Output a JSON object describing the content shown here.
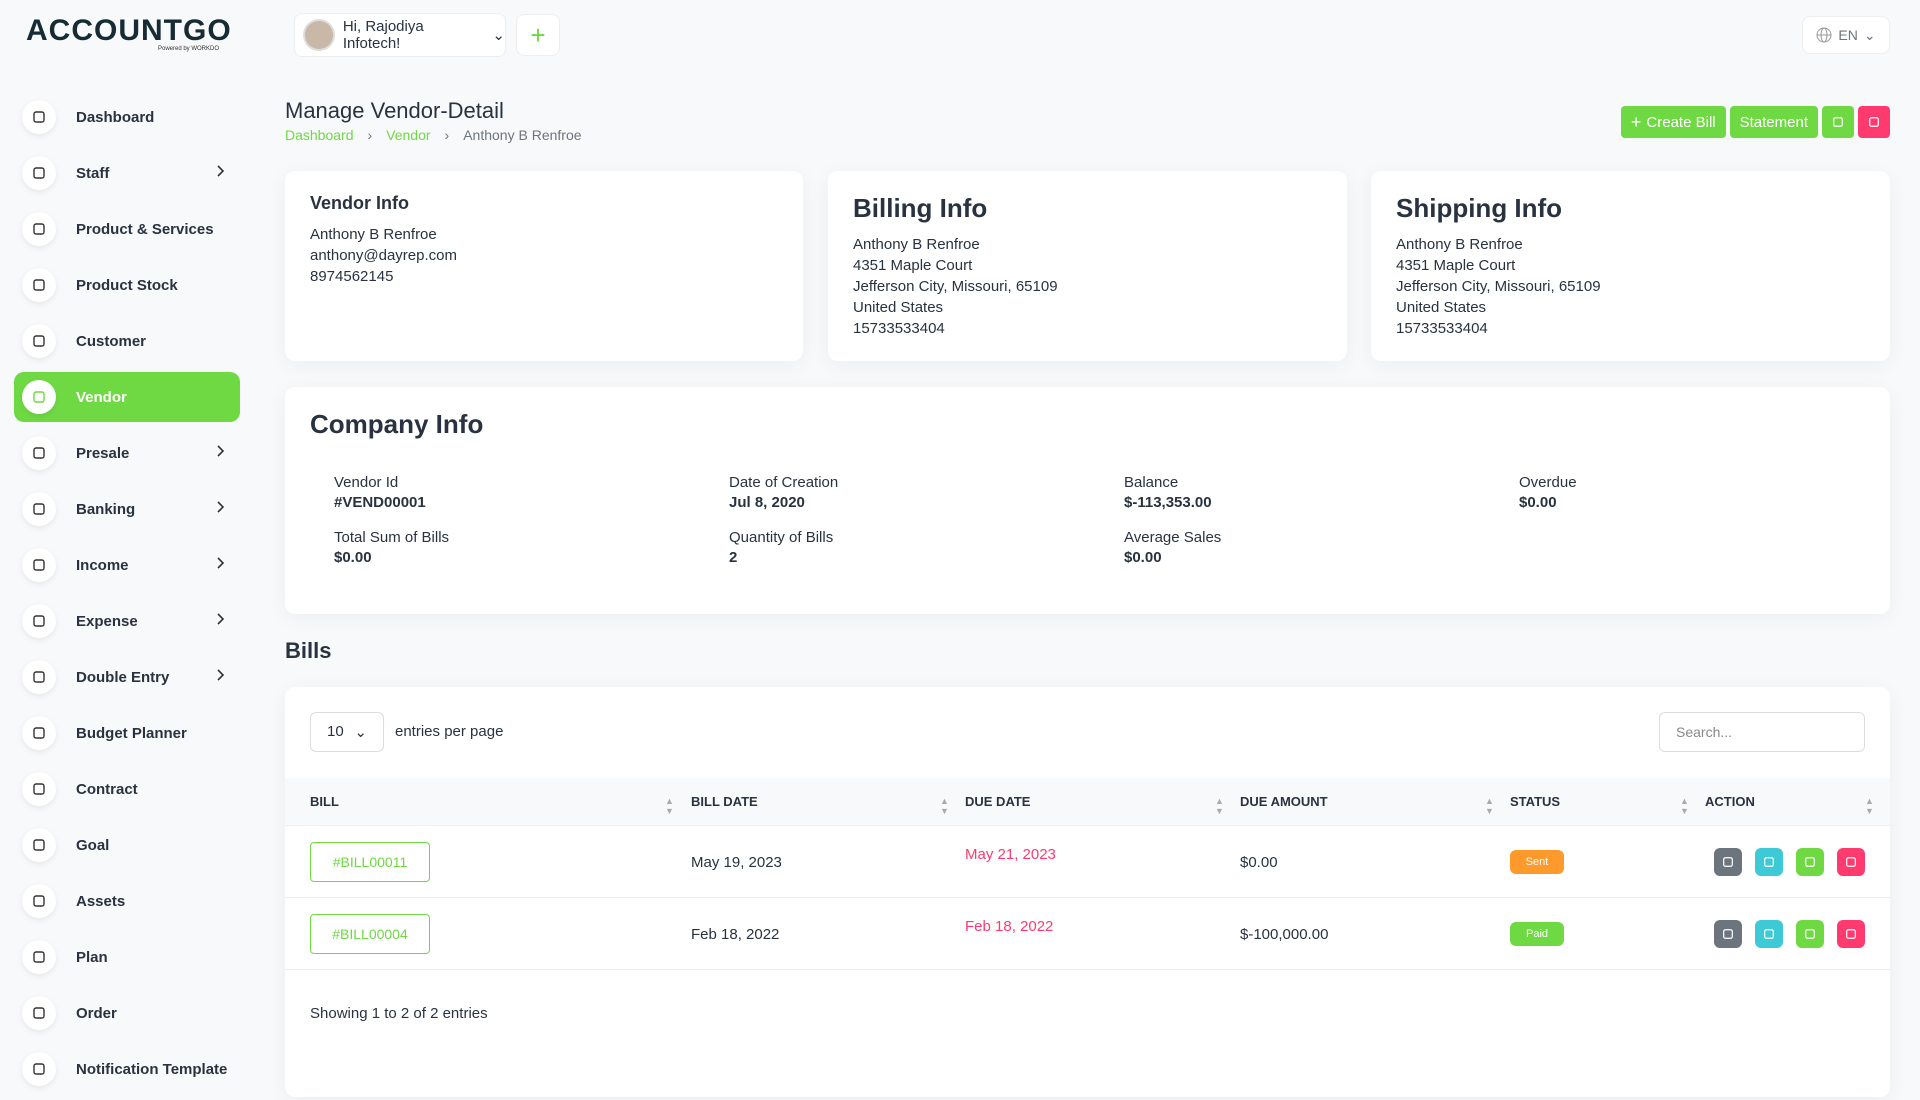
{
  "brand": {
    "logo": "ACCOUNTGO",
    "tagline": "Powered by WORKDO"
  },
  "header": {
    "greeting": "Hi, Rajodiya Infotech!",
    "language": "EN"
  },
  "sidebar": {
    "items": [
      {
        "label": "Dashboard"
      },
      {
        "label": "Staff",
        "submenu": true
      },
      {
        "label": "Product & Services"
      },
      {
        "label": "Product Stock"
      },
      {
        "label": "Customer"
      },
      {
        "label": "Vendor",
        "active": true
      },
      {
        "label": "Presale",
        "submenu": true
      },
      {
        "label": "Banking",
        "submenu": true
      },
      {
        "label": "Income",
        "submenu": true
      },
      {
        "label": "Expense",
        "submenu": true
      },
      {
        "label": "Double Entry",
        "submenu": true
      },
      {
        "label": "Budget Planner"
      },
      {
        "label": "Contract"
      },
      {
        "label": "Goal"
      },
      {
        "label": "Assets"
      },
      {
        "label": "Plan"
      },
      {
        "label": "Order"
      },
      {
        "label": "Notification Template"
      }
    ]
  },
  "page": {
    "title": "Manage Vendor-Detail",
    "breadcrumb": [
      "Dashboard",
      "Vendor",
      "Anthony B Renfroe"
    ],
    "actions": [
      "Create Bill",
      "Statement"
    ]
  },
  "vendor_info": {
    "title": "Vendor Info",
    "lines": [
      "Anthony B Renfroe",
      "anthony@dayrep.com",
      "8974562145"
    ]
  },
  "billing_info": {
    "title": "Billing Info",
    "lines": [
      "Anthony B Renfroe",
      "4351 Maple Court",
      "Jefferson City, Missouri, 65109",
      "United States",
      "15733533404"
    ]
  },
  "shipping_info": {
    "title": "Shipping Info",
    "lines": [
      "Anthony B Renfroe",
      "4351 Maple Court",
      "Jefferson City, Missouri, 65109",
      "United States",
      "15733533404"
    ]
  },
  "company_info": {
    "title": "Company Info",
    "fields": [
      {
        "label": "Vendor Id",
        "value": "#VEND00001"
      },
      {
        "label": "Date of Creation",
        "value": "Jul 8, 2020"
      },
      {
        "label": "Balance",
        "value": "$-113,353.00"
      },
      {
        "label": "Overdue",
        "value": "$0.00"
      },
      {
        "label": "Total Sum of Bills",
        "value": "$0.00"
      },
      {
        "label": "Quantity of Bills",
        "value": "2"
      },
      {
        "label": "Average Sales",
        "value": "$0.00"
      }
    ]
  },
  "bills": {
    "title": "Bills",
    "entries_per_page": "10",
    "entries_label": "entries per page",
    "search_placeholder": "Search...",
    "columns": [
      "BILL",
      "BILL DATE",
      "DUE DATE",
      "DUE AMOUNT",
      "STATUS",
      "ACTION"
    ],
    "rows": [
      {
        "bill": "#BILL00011",
        "bill_date": "May 19, 2023",
        "due_date": "May 21, 2023",
        "due_amount": "$0.00",
        "status": "Sent",
        "status_color": "#fd9a2b"
      },
      {
        "bill": "#BILL00004",
        "bill_date": "Feb 18, 2022",
        "due_date": "Feb 18, 2022",
        "due_amount": "$-100,000.00",
        "status": "Paid",
        "status_color": "#6fd943"
      }
    ],
    "footer": "Showing 1 to 2 of 2 entries"
  }
}
